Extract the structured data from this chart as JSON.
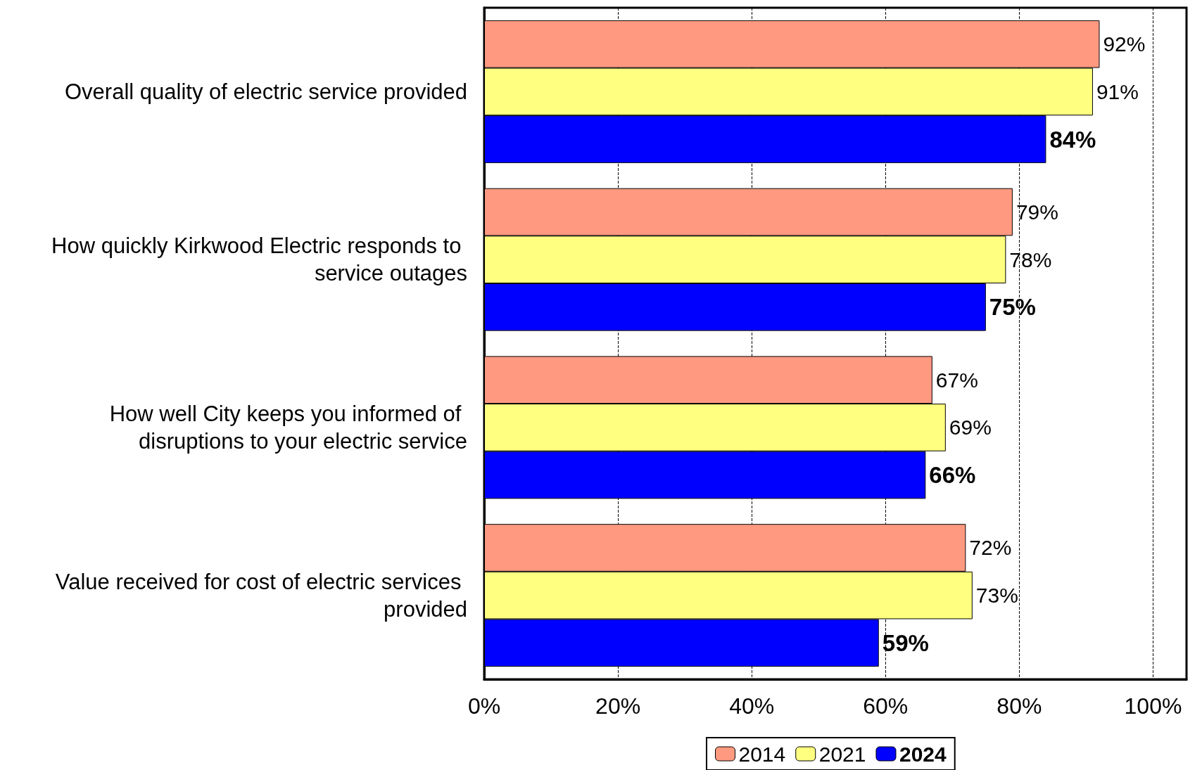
{
  "chart_data": {
    "type": "bar",
    "orientation": "horizontal",
    "categories": [
      "Overall quality of electric service provided",
      "How quickly Kirkwood Electric responds to service outages",
      "How well City keeps you informed of disruptions to your electric service",
      "Value received for cost of electric services provided"
    ],
    "series": [
      {
        "name": "2014",
        "color": "#ff9980",
        "values": [
          92,
          79,
          67,
          72
        ],
        "value_labels": [
          "92%",
          "79%",
          "67%",
          "72%"
        ]
      },
      {
        "name": "2021",
        "color": "#ffff80",
        "values": [
          91,
          78,
          69,
          73
        ],
        "value_labels": [
          "91%",
          "78%",
          "69%",
          "73%"
        ]
      },
      {
        "name": "2024",
        "color": "#0000ff",
        "values": [
          84,
          75,
          66,
          59
        ],
        "value_labels": [
          "84%",
          "75%",
          "66%",
          "59%"
        ]
      }
    ],
    "xlim": [
      0,
      105
    ],
    "xticks": [
      {
        "value": 0,
        "label": "0%"
      },
      {
        "value": 20,
        "label": "20%"
      },
      {
        "value": 40,
        "label": "40%"
      },
      {
        "value": 60,
        "label": "60%"
      },
      {
        "value": 80,
        "label": "80%"
      },
      {
        "value": 100,
        "label": "100%"
      }
    ],
    "grid": "x",
    "legend": "bottom"
  }
}
